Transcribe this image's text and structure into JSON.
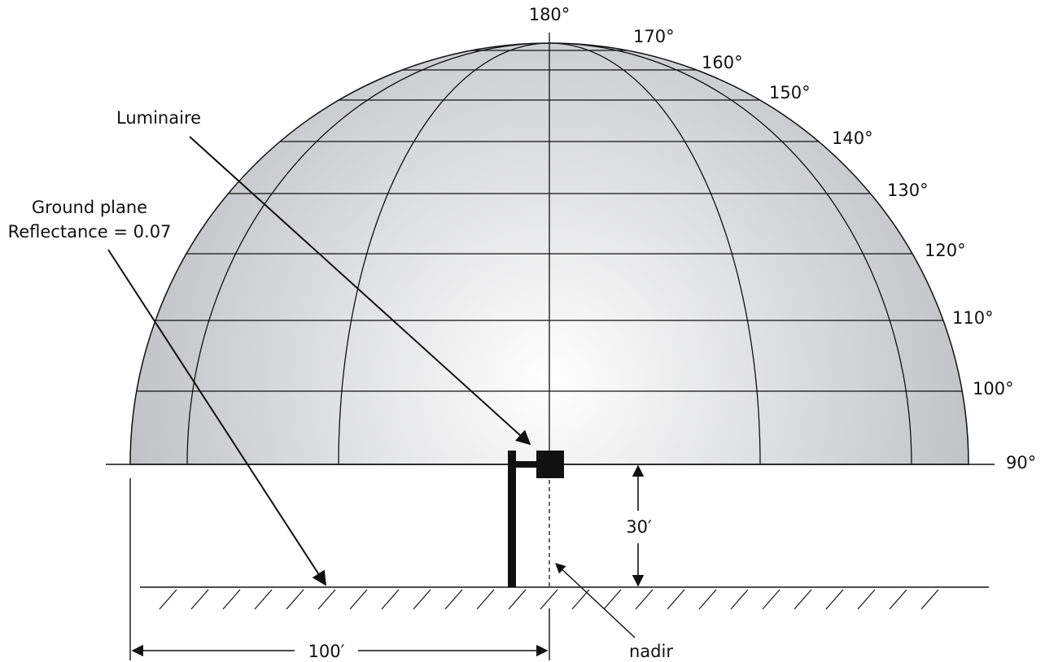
{
  "angles": [
    "180°",
    "170°",
    "160°",
    "150°",
    "140°",
    "130°",
    "120°",
    "110°",
    "100°",
    "90°"
  ],
  "labels": {
    "luminaire": "Luminaire",
    "ground_plane": "Ground plane",
    "reflectance": "Reflectance = 0.07",
    "height": "30′",
    "distance": "100′",
    "nadir": "nadir"
  },
  "colors": {
    "ink": "#111111",
    "dome_center": "#ffffff",
    "dome_edge": "#bdbec2"
  }
}
